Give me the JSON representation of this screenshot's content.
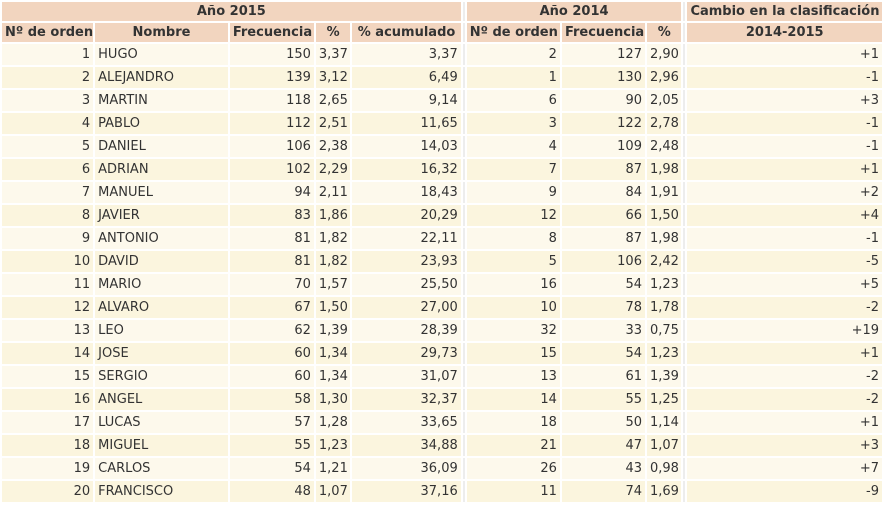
{
  "groups": {
    "y2015": "Año 2015",
    "y2014": "Año 2014",
    "change": "Cambio en la clasificación"
  },
  "columns": {
    "rank2015": "Nº de orden",
    "name": "Nombre",
    "freq2015": "Frecuencia",
    "pct2015": "%",
    "cumpct": "% acumulado",
    "rank2014": "Nº de orden",
    "freq2014": "Frecuencia",
    "pct2014": "%",
    "period": "2014-2015"
  },
  "rows": [
    {
      "rank": "1",
      "name": "HUGO",
      "freq": "150",
      "pct": "3,37",
      "cum": "3,37",
      "rank14": "2",
      "freq14": "127",
      "pct14": "2,90",
      "change": "+1"
    },
    {
      "rank": "2",
      "name": "ALEJANDRO",
      "freq": "139",
      "pct": "3,12",
      "cum": "6,49",
      "rank14": "1",
      "freq14": "130",
      "pct14": "2,96",
      "change": "-1"
    },
    {
      "rank": "3",
      "name": "MARTIN",
      "freq": "118",
      "pct": "2,65",
      "cum": "9,14",
      "rank14": "6",
      "freq14": "90",
      "pct14": "2,05",
      "change": "+3"
    },
    {
      "rank": "4",
      "name": "PABLO",
      "freq": "112",
      "pct": "2,51",
      "cum": "11,65",
      "rank14": "3",
      "freq14": "122",
      "pct14": "2,78",
      "change": "-1"
    },
    {
      "rank": "5",
      "name": "DANIEL",
      "freq": "106",
      "pct": "2,38",
      "cum": "14,03",
      "rank14": "4",
      "freq14": "109",
      "pct14": "2,48",
      "change": "-1"
    },
    {
      "rank": "6",
      "name": "ADRIAN",
      "freq": "102",
      "pct": "2,29",
      "cum": "16,32",
      "rank14": "7",
      "freq14": "87",
      "pct14": "1,98",
      "change": "+1"
    },
    {
      "rank": "7",
      "name": "MANUEL",
      "freq": "94",
      "pct": "2,11",
      "cum": "18,43",
      "rank14": "9",
      "freq14": "84",
      "pct14": "1,91",
      "change": "+2"
    },
    {
      "rank": "8",
      "name": "JAVIER",
      "freq": "83",
      "pct": "1,86",
      "cum": "20,29",
      "rank14": "12",
      "freq14": "66",
      "pct14": "1,50",
      "change": "+4"
    },
    {
      "rank": "9",
      "name": "ANTONIO",
      "freq": "81",
      "pct": "1,82",
      "cum": "22,11",
      "rank14": "8",
      "freq14": "87",
      "pct14": "1,98",
      "change": "-1"
    },
    {
      "rank": "10",
      "name": "DAVID",
      "freq": "81",
      "pct": "1,82",
      "cum": "23,93",
      "rank14": "5",
      "freq14": "106",
      "pct14": "2,42",
      "change": "-5"
    },
    {
      "rank": "11",
      "name": "MARIO",
      "freq": "70",
      "pct": "1,57",
      "cum": "25,50",
      "rank14": "16",
      "freq14": "54",
      "pct14": "1,23",
      "change": "+5"
    },
    {
      "rank": "12",
      "name": "ALVARO",
      "freq": "67",
      "pct": "1,50",
      "cum": "27,00",
      "rank14": "10",
      "freq14": "78",
      "pct14": "1,78",
      "change": "-2"
    },
    {
      "rank": "13",
      "name": "LEO",
      "freq": "62",
      "pct": "1,39",
      "cum": "28,39",
      "rank14": "32",
      "freq14": "33",
      "pct14": "0,75",
      "change": "+19"
    },
    {
      "rank": "14",
      "name": "JOSE",
      "freq": "60",
      "pct": "1,34",
      "cum": "29,73",
      "rank14": "15",
      "freq14": "54",
      "pct14": "1,23",
      "change": "+1"
    },
    {
      "rank": "15",
      "name": "SERGIO",
      "freq": "60",
      "pct": "1,34",
      "cum": "31,07",
      "rank14": "13",
      "freq14": "61",
      "pct14": "1,39",
      "change": "-2"
    },
    {
      "rank": "16",
      "name": "ANGEL",
      "freq": "58",
      "pct": "1,30",
      "cum": "32,37",
      "rank14": "14",
      "freq14": "55",
      "pct14": "1,25",
      "change": "-2"
    },
    {
      "rank": "17",
      "name": "LUCAS",
      "freq": "57",
      "pct": "1,28",
      "cum": "33,65",
      "rank14": "18",
      "freq14": "50",
      "pct14": "1,14",
      "change": "+1"
    },
    {
      "rank": "18",
      "name": "MIGUEL",
      "freq": "55",
      "pct": "1,23",
      "cum": "34,88",
      "rank14": "21",
      "freq14": "47",
      "pct14": "1,07",
      "change": "+3"
    },
    {
      "rank": "19",
      "name": "CARLOS",
      "freq": "54",
      "pct": "1,21",
      "cum": "36,09",
      "rank14": "26",
      "freq14": "43",
      "pct14": "0,98",
      "change": "+7"
    },
    {
      "rank": "20",
      "name": "FRANCISCO",
      "freq": "48",
      "pct": "1,07",
      "cum": "37,16",
      "rank14": "11",
      "freq14": "74",
      "pct14": "1,69",
      "change": "-9"
    }
  ]
}
